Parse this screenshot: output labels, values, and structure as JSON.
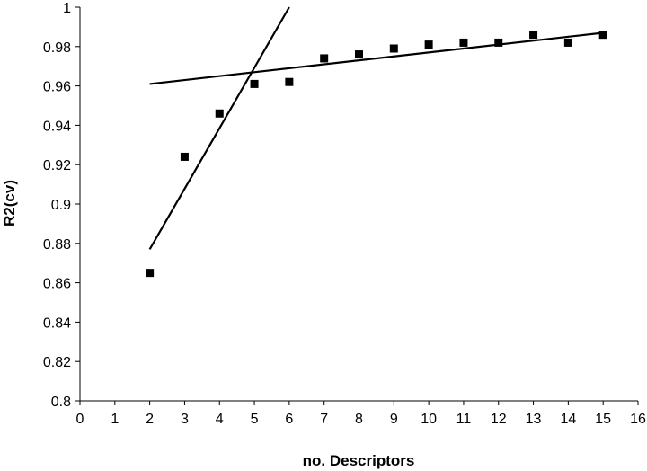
{
  "chart_data": {
    "type": "scatter",
    "title": "",
    "xlabel": "no. Descriptors",
    "ylabel": "R2(cv)",
    "xlim": [
      0,
      16
    ],
    "ylim": [
      0.8,
      1.0
    ],
    "x_ticks": [
      0,
      1,
      2,
      3,
      4,
      5,
      6,
      7,
      8,
      9,
      10,
      11,
      12,
      13,
      14,
      15,
      16
    ],
    "y_ticks": [
      0.8,
      0.82,
      0.84,
      0.86,
      0.88,
      0.9,
      0.92,
      0.94,
      0.96,
      0.98,
      1
    ],
    "grid": false,
    "legend": "none",
    "series": [
      {
        "x": [
          2,
          3,
          4,
          5,
          6,
          7,
          8,
          9,
          10,
          11,
          12,
          13,
          14,
          15
        ],
        "y": [
          0.865,
          0.924,
          0.946,
          0.961,
          0.962,
          0.974,
          0.976,
          0.979,
          0.981,
          0.982,
          0.982,
          0.986,
          0.982,
          0.986
        ]
      }
    ],
    "trend_lines": [
      {
        "x": [
          2,
          6
        ],
        "y": [
          0.877,
          1.0
        ]
      },
      {
        "x": [
          2,
          15
        ],
        "y": [
          0.961,
          0.987
        ]
      }
    ],
    "marker_color": "#000000",
    "line_color": "#000000"
  }
}
